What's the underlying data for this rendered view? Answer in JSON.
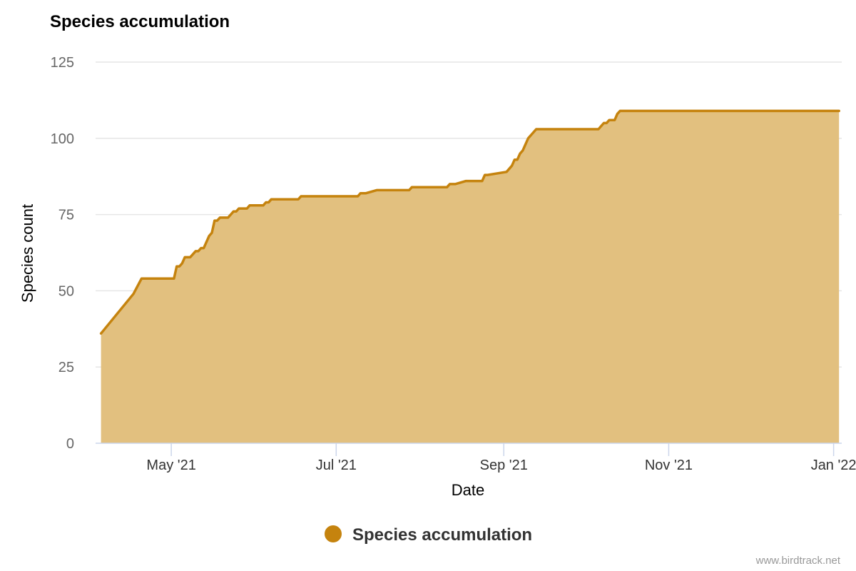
{
  "colors": {
    "series": "#c5830e",
    "area": "#e2c07f"
  },
  "credit": "www.birdtrack.net",
  "chart_data": {
    "type": "area",
    "title": "Species accumulation",
    "xlabel": "Date",
    "ylabel": "Species count",
    "ylim": [
      0,
      125
    ],
    "xlim": [
      "2021-04-03",
      "2022-01-04"
    ],
    "yticks": [
      0,
      25,
      50,
      75,
      100,
      125
    ],
    "xticks": [
      {
        "date": "2021-05-01",
        "label": "May '21"
      },
      {
        "date": "2021-07-01",
        "label": "Jul '21"
      },
      {
        "date": "2021-09-01",
        "label": "Sep '21"
      },
      {
        "date": "2021-11-01",
        "label": "Nov '21"
      },
      {
        "date": "2022-01-01",
        "label": "Jan '22"
      }
    ],
    "grid": true,
    "legend_position": "bottom-center",
    "series": [
      {
        "name": "Species accumulation",
        "points": [
          [
            "2021-04-05",
            36
          ],
          [
            "2021-04-17",
            49
          ],
          [
            "2021-04-20",
            54
          ],
          [
            "2021-05-02",
            54
          ],
          [
            "2021-05-03",
            58
          ],
          [
            "2021-05-04",
            58
          ],
          [
            "2021-05-05",
            59
          ],
          [
            "2021-05-06",
            61
          ],
          [
            "2021-05-08",
            61
          ],
          [
            "2021-05-10",
            63
          ],
          [
            "2021-05-11",
            63
          ],
          [
            "2021-05-12",
            64
          ],
          [
            "2021-05-13",
            64
          ],
          [
            "2021-05-15",
            68
          ],
          [
            "2021-05-16",
            69
          ],
          [
            "2021-05-17",
            73
          ],
          [
            "2021-05-18",
            73
          ],
          [
            "2021-05-19",
            74
          ],
          [
            "2021-05-22",
            74
          ],
          [
            "2021-05-24",
            76
          ],
          [
            "2021-05-25",
            76
          ],
          [
            "2021-05-26",
            77
          ],
          [
            "2021-05-29",
            77
          ],
          [
            "2021-05-30",
            78
          ],
          [
            "2021-06-04",
            78
          ],
          [
            "2021-06-05",
            79
          ],
          [
            "2021-06-06",
            79
          ],
          [
            "2021-06-07",
            80
          ],
          [
            "2021-06-17",
            80
          ],
          [
            "2021-06-18",
            81
          ],
          [
            "2021-07-09",
            81
          ],
          [
            "2021-07-10",
            82
          ],
          [
            "2021-07-12",
            82
          ],
          [
            "2021-07-16",
            83
          ],
          [
            "2021-07-28",
            83
          ],
          [
            "2021-07-29",
            84
          ],
          [
            "2021-08-11",
            84
          ],
          [
            "2021-08-12",
            85
          ],
          [
            "2021-08-14",
            85
          ],
          [
            "2021-08-18",
            86
          ],
          [
            "2021-08-24",
            86
          ],
          [
            "2021-08-25",
            88
          ],
          [
            "2021-08-26",
            88
          ],
          [
            "2021-09-02",
            89
          ],
          [
            "2021-09-04",
            91
          ],
          [
            "2021-09-05",
            93
          ],
          [
            "2021-09-06",
            93
          ],
          [
            "2021-09-07",
            95
          ],
          [
            "2021-09-08",
            96
          ],
          [
            "2021-09-10",
            100
          ],
          [
            "2021-09-11",
            101
          ],
          [
            "2021-09-13",
            103
          ],
          [
            "2021-10-06",
            103
          ],
          [
            "2021-10-08",
            105
          ],
          [
            "2021-10-09",
            105
          ],
          [
            "2021-10-10",
            106
          ],
          [
            "2021-10-12",
            106
          ],
          [
            "2021-10-13",
            108
          ],
          [
            "2021-10-14",
            109
          ],
          [
            "2022-01-03",
            109
          ]
        ]
      }
    ]
  }
}
